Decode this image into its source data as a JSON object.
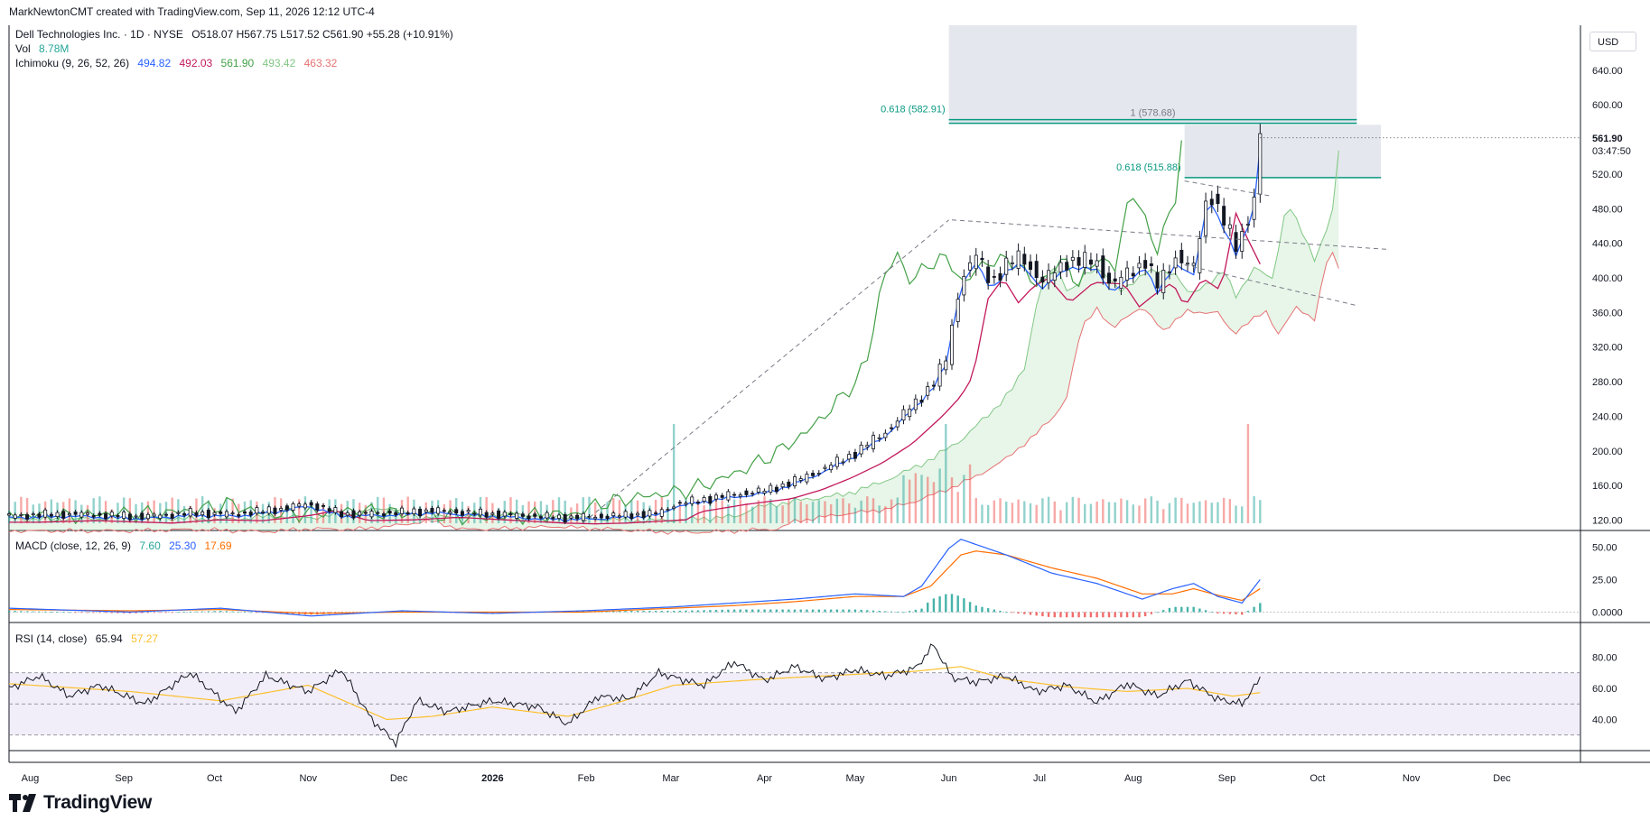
{
  "header": {
    "attribution": "MarkNewtonCMT created with TradingView.com, Sep 11, 2026 12:12 UTC-4"
  },
  "legend": {
    "symbol": "Dell Technologies Inc. · 1D · NYSE",
    "ohlc": "O518.07  H567.75  L517.52  C561.90  +55.28 (+10.91%)",
    "vol_label": "Vol",
    "vol_value": "8.78M",
    "ichimoku_label": "Ichimoku (9, 26, 52, 26)",
    "ichimoku_values": [
      "494.82",
      "492.03",
      "561.90",
      "493.42",
      "463.32"
    ],
    "macd_label": "MACD (close, 12, 26, 9)",
    "macd_values": [
      "7.60",
      "25.30",
      "17.69"
    ],
    "rsi_label": "RSI (14, close)",
    "rsi_values": [
      "65.94",
      "57.27"
    ]
  },
  "currency": "USD",
  "last_price": {
    "value": "561.90",
    "countdown": "03:47:50"
  },
  "brand": "TradingView",
  "colors": {
    "up": "#26a69a",
    "down": "#ef5350",
    "candle": "#131722",
    "tenkan": "#2962ff",
    "kijun": "#c2185b",
    "lagging": "#43a047",
    "cloud": "#a5d6a7",
    "cloud_bear": "#ef9a9a",
    "macd": "#2962ff",
    "signal": "#ff6d00",
    "rsi": "#131722",
    "rsi_ma": "#fbc02d",
    "fib": "#089981"
  },
  "chart_data": [
    {
      "type": "candlestick",
      "title": "Dell Technologies Inc. · 1D · NYSE",
      "ylabel": "USD",
      "ylim": [
        108,
        692
      ],
      "y_ticks": [
        120,
        160,
        200,
        240,
        280,
        320,
        360,
        400,
        440,
        480,
        520,
        600,
        640
      ],
      "y_tick_labels": [
        "120.00",
        "160.00",
        "200.00",
        "240.00",
        "280.00",
        "320.00",
        "360.00",
        "400.00",
        "440.00",
        "480.00",
        "520.00",
        "600.00",
        "640.00"
      ],
      "x_tick_labels": [
        "Aug",
        "Sep",
        "Oct",
        "Nov",
        "Dec",
        "2026",
        "Feb",
        "Mar",
        "Apr",
        "May",
        "Jun",
        "Jul",
        "Aug",
        "Sep",
        "Oct",
        "Nov",
        "Dec"
      ],
      "x_tick_days": [
        7,
        38,
        68,
        99,
        129,
        160,
        191,
        219,
        250,
        280,
        311,
        341,
        372,
        403,
        433,
        464,
        494
      ],
      "last_bar_day": 414,
      "close_path": [
        [
          0,
          125
        ],
        [
          20,
          127
        ],
        [
          45,
          124
        ],
        [
          60,
          128
        ],
        [
          75,
          127
        ],
        [
          90,
          133
        ],
        [
          99,
          139
        ],
        [
          110,
          127
        ],
        [
          125,
          128
        ],
        [
          140,
          131
        ],
        [
          160,
          127
        ],
        [
          175,
          124
        ],
        [
          185,
          123
        ],
        [
          195,
          124
        ],
        [
          205,
          126
        ],
        [
          215,
          128
        ],
        [
          220,
          138
        ],
        [
          235,
          147
        ],
        [
          250,
          154
        ],
        [
          260,
          165
        ],
        [
          270,
          180
        ],
        [
          280,
          198
        ],
        [
          290,
          222
        ],
        [
          300,
          256
        ],
        [
          306,
          280
        ],
        [
          310,
          305
        ],
        [
          315,
          400
        ],
        [
          320,
          425
        ],
        [
          325,
          395
        ],
        [
          330,
          415
        ],
        [
          335,
          425
        ],
        [
          342,
          395
        ],
        [
          350,
          420
        ],
        [
          360,
          418
        ],
        [
          365,
          390
        ],
        [
          370,
          405
        ],
        [
          376,
          420
        ],
        [
          380,
          390
        ],
        [
          386,
          425
        ],
        [
          392,
          410
        ],
        [
          397,
          505
        ],
        [
          400,
          480
        ],
        [
          406,
          435
        ],
        [
          410,
          470
        ],
        [
          413,
          505
        ],
        [
          414,
          561.9
        ]
      ],
      "fib_levels": [
        {
          "label": "0.618 (582.91)",
          "value": 582.91
        },
        {
          "label": "1 (578.68)",
          "value": 578.68
        },
        {
          "label": "0.618 (515.88)",
          "value": 515.88
        }
      ],
      "zones": [
        {
          "from_day": 311,
          "to_day": 446,
          "low": 578.68,
          "high": 692
        },
        {
          "from_day": 389,
          "to_day": 454,
          "low": 515.88,
          "high": 577
        }
      ],
      "trendlines": [
        {
          "from": [
            190,
            117
          ],
          "to": [
            311,
            467
          ],
          "dashed": true
        },
        {
          "from": [
            312,
            467
          ],
          "to": [
            456,
            433
          ],
          "dashed": true
        },
        {
          "from": [
            389,
            415
          ],
          "to": [
            446,
            368
          ],
          "dashed": true
        },
        {
          "from": [
            389,
            512
          ],
          "to": [
            417,
            495
          ],
          "dashed": true
        }
      ]
    },
    {
      "type": "line",
      "title": "MACD (close, 12, 26, 9)",
      "ylim": [
        -8,
        60
      ],
      "y_ticks": [
        0,
        25,
        50
      ],
      "y_tick_labels": [
        "0.0000",
        "25.00",
        "50.00"
      ],
      "series": [
        {
          "name": "MACD",
          "points": [
            [
              0,
              3
            ],
            [
              40,
              0
            ],
            [
              70,
              3
            ],
            [
              100,
              -3
            ],
            [
              130,
              1
            ],
            [
              160,
              -1
            ],
            [
              190,
              1
            ],
            [
              220,
              4
            ],
            [
              240,
              7
            ],
            [
              260,
              10
            ],
            [
              280,
              14
            ],
            [
              296,
              12
            ],
            [
              302,
              20
            ],
            [
              311,
              49
            ],
            [
              315,
              56
            ],
            [
              320,
              52
            ],
            [
              330,
              44
            ],
            [
              345,
              30
            ],
            [
              360,
              22
            ],
            [
              375,
              10
            ],
            [
              385,
              18
            ],
            [
              392,
              22
            ],
            [
              400,
              12
            ],
            [
              408,
              7
            ],
            [
              414,
              25
            ]
          ]
        },
        {
          "name": "Signal",
          "points": [
            [
              0,
              2
            ],
            [
              40,
              1
            ],
            [
              70,
              2
            ],
            [
              100,
              -1
            ],
            [
              130,
              0
            ],
            [
              160,
              0
            ],
            [
              190,
              0
            ],
            [
              220,
              3
            ],
            [
              240,
              5
            ],
            [
              260,
              8
            ],
            [
              280,
              12
            ],
            [
              296,
              12
            ],
            [
              305,
              20
            ],
            [
              315,
              44
            ],
            [
              320,
              47
            ],
            [
              330,
              44
            ],
            [
              345,
              34
            ],
            [
              360,
              26
            ],
            [
              375,
              14
            ],
            [
              385,
              14
            ],
            [
              392,
              18
            ],
            [
              400,
              13
            ],
            [
              408,
              9
            ],
            [
              414,
              18
            ]
          ]
        }
      ]
    },
    {
      "type": "line",
      "title": "RSI (14, close)",
      "ylim": [
        20,
        100
      ],
      "y_ticks": [
        40,
        60,
        80
      ],
      "y_tick_labels": [
        "40.00",
        "60.00",
        "80.00"
      ],
      "bands": [
        30,
        50,
        70
      ],
      "series": [
        {
          "name": "RSI",
          "points": [
            [
              0,
              60
            ],
            [
              10,
              68
            ],
            [
              20,
              55
            ],
            [
              30,
              62
            ],
            [
              45,
              50
            ],
            [
              60,
              70
            ],
            [
              75,
              45
            ],
            [
              85,
              68
            ],
            [
              99,
              58
            ],
            [
              110,
              72
            ],
            [
              120,
              40
            ],
            [
              128,
              25
            ],
            [
              135,
              52
            ],
            [
              145,
              45
            ],
            [
              160,
              52
            ],
            [
              175,
              48
            ],
            [
              185,
              37
            ],
            [
              195,
              55
            ],
            [
              205,
              53
            ],
            [
              215,
              70
            ],
            [
              222,
              66
            ],
            [
              230,
              62
            ],
            [
              240,
              77
            ],
            [
              250,
              65
            ],
            [
              260,
              74
            ],
            [
              270,
              66
            ],
            [
              280,
              72
            ],
            [
              290,
              68
            ],
            [
              300,
              73
            ],
            [
              306,
              88
            ],
            [
              312,
              67
            ],
            [
              320,
              64
            ],
            [
              330,
              68
            ],
            [
              340,
              58
            ],
            [
              350,
              62
            ],
            [
              360,
              51
            ],
            [
              370,
              63
            ],
            [
              380,
              55
            ],
            [
              390,
              65
            ],
            [
              400,
              53
            ],
            [
              408,
              50
            ],
            [
              414,
              65.94
            ]
          ]
        },
        {
          "name": "RSI MA",
          "points": [
            [
              0,
              63
            ],
            [
              40,
              58
            ],
            [
              70,
              52
            ],
            [
              99,
              62
            ],
            [
              125,
              40
            ],
            [
              140,
              42
            ],
            [
              160,
              48
            ],
            [
              185,
              42
            ],
            [
              200,
              50
            ],
            [
              220,
              62
            ],
            [
              250,
              66
            ],
            [
              280,
              69
            ],
            [
              300,
              71
            ],
            [
              315,
              74
            ],
            [
              330,
              66
            ],
            [
              350,
              61
            ],
            [
              370,
              58
            ],
            [
              390,
              60
            ],
            [
              405,
              55
            ],
            [
              414,
              57.27
            ]
          ]
        }
      ]
    }
  ]
}
